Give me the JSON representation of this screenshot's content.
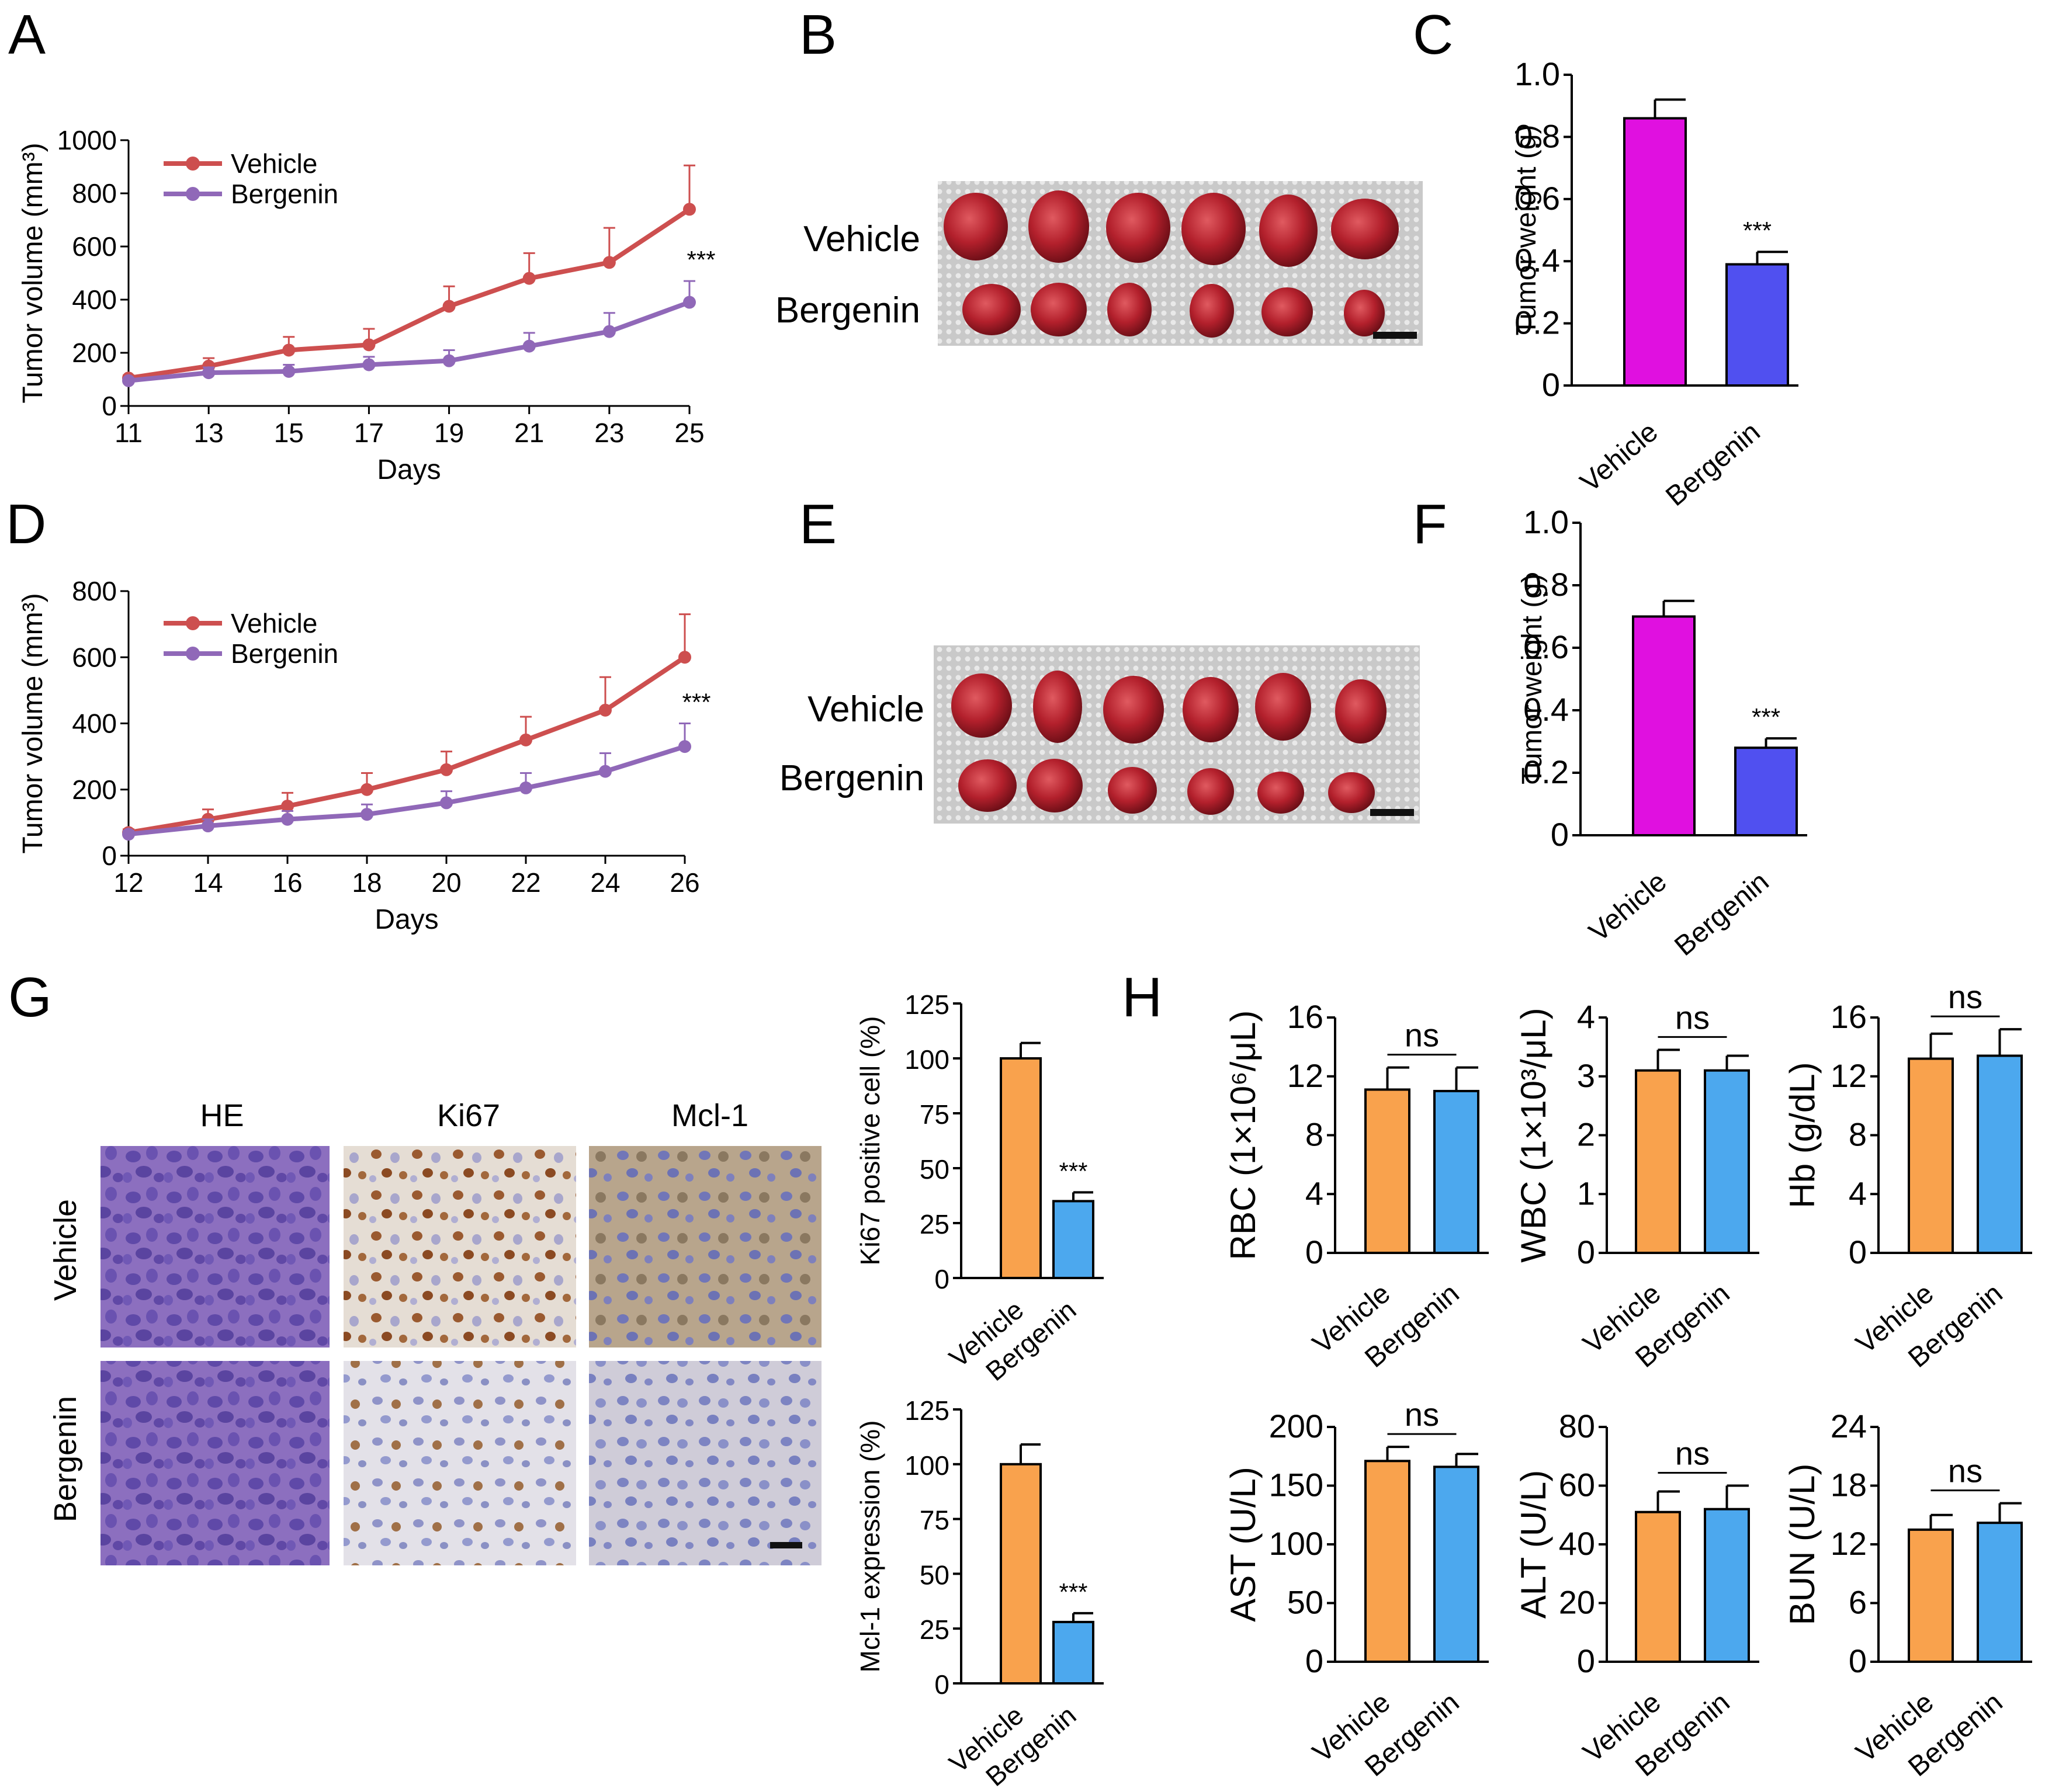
{
  "panel_letters": [
    "A",
    "B",
    "C",
    "D",
    "E",
    "F",
    "G",
    "H"
  ],
  "colors": {
    "vehicle_line": "#CD4F4F",
    "bergenin_line": "#9068B8",
    "vehicle_bar_magenta": "#E010E0",
    "bergenin_bar_blue": "#5050F0",
    "vehicle_bar_orange": "#F9A24D",
    "bergenin_bar_lightblue": "#4CA8EE"
  },
  "photo_panels": {
    "B": {
      "row_labels": [
        "Vehicle",
        "Bergenin"
      ]
    },
    "E": {
      "row_labels": [
        "Vehicle",
        "Bergenin"
      ]
    }
  },
  "ihc": {
    "stains": [
      "HE",
      "Ki67",
      "Mcl-1"
    ],
    "rows": [
      "Vehicle",
      "Bergenin"
    ]
  },
  "chart_data": [
    {
      "id": "A",
      "type": "line",
      "x": [
        11,
        13,
        15,
        17,
        19,
        21,
        23,
        25
      ],
      "xlabel": "Days",
      "ylabel": "Tumor volume (mm³)",
      "ylim": [
        0,
        1000
      ],
      "yticks": [
        "0",
        "200",
        "400",
        "600",
        "800",
        "1000"
      ],
      "xticks": [
        "11",
        "13",
        "15",
        "17",
        "19",
        "21",
        "23",
        "25"
      ],
      "series": [
        {
          "name": "Vehicle",
          "values": [
            105,
            150,
            210,
            230,
            375,
            480,
            540,
            740
          ],
          "err": [
            10,
            30,
            50,
            60,
            75,
            95,
            130,
            165
          ]
        },
        {
          "name": "Bergenin",
          "values": [
            95,
            125,
            130,
            155,
            170,
            225,
            280,
            390
          ],
          "err": [
            10,
            20,
            25,
            30,
            40,
            50,
            70,
            80
          ]
        }
      ],
      "annotation": "***"
    },
    {
      "id": "C",
      "type": "bar",
      "categories": [
        "Vehicle",
        "Bergenin"
      ],
      "values": [
        0.86,
        0.39
      ],
      "err": [
        0.06,
        0.04
      ],
      "ylabel": "Tumor weight (g)",
      "ylim": [
        0,
        1.0
      ],
      "yticks": [
        "0",
        "0.2",
        "0.4",
        "0.6",
        "0.8",
        "1.0"
      ],
      "annotation": "***"
    },
    {
      "id": "D",
      "type": "line",
      "x": [
        12,
        14,
        16,
        18,
        20,
        22,
        24,
        26
      ],
      "xlabel": "Days",
      "ylabel": "Tumor volume (mm³)",
      "ylim": [
        0,
        800
      ],
      "yticks": [
        "0",
        "200",
        "400",
        "600",
        "800"
      ],
      "xticks": [
        "12",
        "14",
        "16",
        "18",
        "20",
        "22",
        "24",
        "26"
      ],
      "series": [
        {
          "name": "Vehicle",
          "values": [
            70,
            110,
            150,
            200,
            260,
            350,
            440,
            600
          ],
          "err": [
            10,
            30,
            40,
            50,
            55,
            70,
            100,
            130
          ]
        },
        {
          "name": "Bergenin",
          "values": [
            65,
            90,
            110,
            125,
            160,
            205,
            255,
            330
          ],
          "err": [
            10,
            20,
            25,
            30,
            35,
            45,
            55,
            70
          ]
        }
      ],
      "annotation": "***"
    },
    {
      "id": "F",
      "type": "bar",
      "categories": [
        "Vehicle",
        "Bergenin"
      ],
      "values": [
        0.7,
        0.28
      ],
      "err": [
        0.05,
        0.03
      ],
      "ylabel": "Tumor weight (g)",
      "ylim": [
        0,
        1.0
      ],
      "yticks": [
        "0",
        "0.2",
        "0.4",
        "0.6",
        "0.8",
        "1.0"
      ],
      "annotation": "***"
    },
    {
      "id": "G1",
      "type": "bar",
      "categories": [
        "Vehicle",
        "Bergenin"
      ],
      "values": [
        100,
        35
      ],
      "err": [
        7,
        4
      ],
      "ylabel": "Ki67 positive cell (%)",
      "ylim": [
        0,
        125
      ],
      "yticks": [
        "0",
        "25",
        "50",
        "75",
        "100",
        "125"
      ],
      "annotation": "***"
    },
    {
      "id": "G2",
      "type": "bar",
      "categories": [
        "Vehicle",
        "Bergenin"
      ],
      "values": [
        100,
        28
      ],
      "err": [
        9,
        4
      ],
      "ylabel": "Mcl-1 expression (%)",
      "ylim": [
        0,
        125
      ],
      "yticks": [
        "0",
        "25",
        "50",
        "75",
        "100",
        "125"
      ],
      "annotation": "***"
    },
    {
      "id": "H1",
      "type": "bar",
      "categories": [
        "Vehicle",
        "Bergenin"
      ],
      "values": [
        11.1,
        11.0
      ],
      "err": [
        1.5,
        1.6
      ],
      "ylabel": "RBC (1×10⁶/μL)",
      "ylim": [
        0,
        16
      ],
      "yticks": [
        "0",
        "4",
        "8",
        "12",
        "16"
      ],
      "annotation": "ns"
    },
    {
      "id": "H2",
      "type": "bar",
      "categories": [
        "Vehicle",
        "Bergenin"
      ],
      "values": [
        3.1,
        3.1
      ],
      "err": [
        0.35,
        0.25
      ],
      "ylabel": "WBC (1×10³/μL)",
      "ylim": [
        0,
        4
      ],
      "yticks": [
        "0",
        "1",
        "2",
        "3",
        "4"
      ],
      "annotation": "ns"
    },
    {
      "id": "H3",
      "type": "bar",
      "categories": [
        "Vehicle",
        "Bergenin"
      ],
      "values": [
        13.2,
        13.4
      ],
      "err": [
        1.7,
        1.8
      ],
      "ylabel": "Hb (g/dL)",
      "ylim": [
        0,
        16
      ],
      "yticks": [
        "0",
        "4",
        "8",
        "12",
        "16"
      ],
      "annotation": "ns"
    },
    {
      "id": "H4",
      "type": "bar",
      "categories": [
        "Vehicle",
        "Bergenin"
      ],
      "values": [
        171,
        166
      ],
      "err": [
        12,
        11
      ],
      "ylabel": "AST (U/L)",
      "ylim": [
        0,
        200
      ],
      "yticks": [
        "0",
        "50",
        "100",
        "150",
        "200"
      ],
      "annotation": "ns"
    },
    {
      "id": "H5",
      "type": "bar",
      "categories": [
        "Vehicle",
        "Bergenin"
      ],
      "values": [
        51,
        52
      ],
      "err": [
        7,
        8
      ],
      "ylabel": "ALT (U/L)",
      "ylim": [
        0,
        80
      ],
      "yticks": [
        "0",
        "20",
        "40",
        "60",
        "80"
      ],
      "annotation": "ns"
    },
    {
      "id": "H6",
      "type": "bar",
      "categories": [
        "Vehicle",
        "Bergenin"
      ],
      "values": [
        13.5,
        14.2
      ],
      "err": [
        1.5,
        2.0
      ],
      "ylabel": "BUN (U/L)",
      "ylim": [
        0,
        24
      ],
      "yticks": [
        "0",
        "6",
        "12",
        "18",
        "24"
      ],
      "annotation": "ns"
    }
  ]
}
